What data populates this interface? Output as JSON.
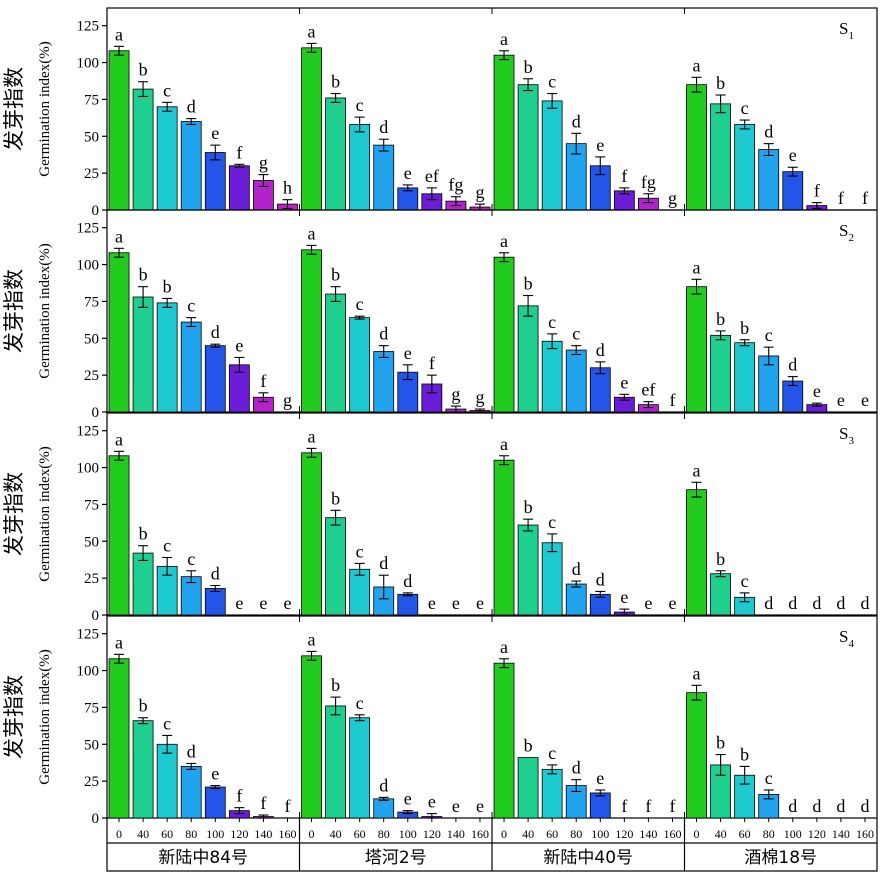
{
  "chart_data": {
    "type": "bar",
    "ylabel_cn": "发芽指数",
    "ylabel_en": "Germination index(%)",
    "ylim": [
      0,
      137
    ],
    "yticks": [
      0,
      25,
      50,
      75,
      100,
      125
    ],
    "categories": [
      "0",
      "40",
      "60",
      "80",
      "100",
      "120",
      "140",
      "160"
    ],
    "varieties": [
      "新陆中84号",
      "塔河2号",
      "新陆中40号",
      "酒棉18号"
    ],
    "bar_colors": [
      "#22cc1e",
      "#1fcf8f",
      "#1ec9cf",
      "#22a3ee",
      "#2255e8",
      "#6a1cd6",
      "#b323cc",
      "#c21fc6"
    ],
    "panels": [
      {
        "label_main": "S",
        "label_sub": "1",
        "groups": [
          {
            "values": [
              108,
              82,
              70,
              60,
              39,
              30,
              20,
              4
            ],
            "errors": [
              3,
              5,
              3,
              2,
              5,
              1,
              4,
              3
            ],
            "letters": [
              "a",
              "b",
              "c",
              "d",
              "e",
              "f",
              "g",
              "h"
            ]
          },
          {
            "values": [
              110,
              76,
              58,
              44,
              15,
              11,
              6,
              2
            ],
            "errors": [
              3,
              3,
              5,
              4,
              2,
              4,
              3,
              2
            ],
            "letters": [
              "a",
              "b",
              "c",
              "d",
              "e",
              "ef",
              "fg",
              "g"
            ]
          },
          {
            "values": [
              105,
              85,
              74,
              45,
              30,
              13,
              8,
              0
            ],
            "errors": [
              3,
              4,
              5,
              7,
              6,
              2,
              3,
              0
            ],
            "letters": [
              "a",
              "b",
              "c",
              "d",
              "e",
              "f",
              "fg",
              "g"
            ]
          },
          {
            "values": [
              85,
              72,
              58,
              41,
              26,
              3,
              0,
              0
            ],
            "errors": [
              5,
              6,
              3,
              4,
              3,
              2,
              0,
              0
            ],
            "letters": [
              "a",
              "b",
              "c",
              "d",
              "e",
              "f",
              "f",
              "f"
            ]
          }
        ]
      },
      {
        "label_main": "S",
        "label_sub": "2",
        "groups": [
          {
            "values": [
              108,
              78,
              74,
              61,
              45,
              32,
              10,
              0
            ],
            "errors": [
              3,
              7,
              3,
              3,
              1,
              5,
              3,
              0
            ],
            "letters": [
              "a",
              "b",
              "b",
              "c",
              "d",
              "e",
              "f",
              "g"
            ]
          },
          {
            "values": [
              110,
              80,
              64,
              41,
              27,
              19,
              2,
              1
            ],
            "errors": [
              3,
              5,
              1,
              4,
              5,
              6,
              2,
              1
            ],
            "letters": [
              "a",
              "b",
              "c",
              "d",
              "e",
              "f",
              "g",
              "g"
            ]
          },
          {
            "values": [
              105,
              72,
              48,
              42,
              30,
              10,
              5,
              0
            ],
            "errors": [
              3,
              7,
              5,
              3,
              4,
              2,
              2,
              0
            ],
            "letters": [
              "a",
              "b",
              "c",
              "c",
              "d",
              "e",
              "ef",
              "f"
            ]
          },
          {
            "values": [
              85,
              52,
              47,
              38,
              21,
              5,
              0,
              0
            ],
            "errors": [
              5,
              3,
              2,
              6,
              3,
              1,
              0,
              0
            ],
            "letters": [
              "a",
              "b",
              "b",
              "c",
              "d",
              "e",
              "e",
              "e"
            ]
          }
        ]
      },
      {
        "label_main": "S",
        "label_sub": "3",
        "groups": [
          {
            "values": [
              108,
              42,
              33,
              26,
              18,
              0,
              0,
              0
            ],
            "errors": [
              3,
              5,
              6,
              4,
              2,
              0,
              0,
              0
            ],
            "letters": [
              "a",
              "b",
              "c",
              "c",
              "d",
              "e",
              "e",
              "e"
            ]
          },
          {
            "values": [
              110,
              66,
              31,
              19,
              14,
              0,
              0,
              0
            ],
            "errors": [
              3,
              5,
              4,
              8,
              1,
              0,
              0,
              0
            ],
            "letters": [
              "a",
              "b",
              "c",
              "d",
              "d",
              "e",
              "e",
              "e"
            ]
          },
          {
            "values": [
              105,
              61,
              49,
              21,
              14,
              2,
              0,
              0
            ],
            "errors": [
              3,
              4,
              6,
              2,
              2,
              2,
              0,
              0
            ],
            "letters": [
              "a",
              "b",
              "c",
              "d",
              "d",
              "e",
              "e",
              "e"
            ]
          },
          {
            "values": [
              85,
              28,
              12,
              0,
              0,
              0,
              0,
              0
            ],
            "errors": [
              5,
              2,
              3,
              0,
              0,
              0,
              0,
              0
            ],
            "letters": [
              "a",
              "b",
              "c",
              "d",
              "d",
              "d",
              "d",
              "d"
            ]
          }
        ]
      },
      {
        "label_main": "S",
        "label_sub": "4",
        "groups": [
          {
            "values": [
              108,
              66,
              50,
              35,
              21,
              5,
              1,
              0
            ],
            "errors": [
              3,
              2,
              6,
              2,
              1,
              2,
              1,
              0
            ],
            "letters": [
              "a",
              "b",
              "c",
              "d",
              "e",
              "f",
              "f",
              "f"
            ]
          },
          {
            "values": [
              110,
              76,
              68,
              13,
              4,
              1,
              0,
              0
            ],
            "errors": [
              3,
              6,
              2,
              1,
              1,
              2,
              0,
              0
            ],
            "letters": [
              "a",
              "b",
              "c",
              "d",
              "e",
              "e",
              "e",
              "e"
            ]
          },
          {
            "values": [
              105,
              41,
              33,
              22,
              17,
              0,
              0,
              0
            ],
            "errors": [
              3,
              0,
              3,
              4,
              2,
              0,
              0,
              0
            ],
            "letters": [
              "a",
              "b",
              "c",
              "d",
              "e",
              "f",
              "f",
              "f"
            ]
          },
          {
            "values": [
              85,
              36,
              29,
              16,
              0,
              0,
              0,
              0
            ],
            "errors": [
              5,
              7,
              6,
              3,
              0,
              0,
              0,
              0
            ],
            "letters": [
              "a",
              "b",
              "b",
              "c",
              "d",
              "d",
              "d",
              "d"
            ]
          }
        ]
      }
    ]
  }
}
